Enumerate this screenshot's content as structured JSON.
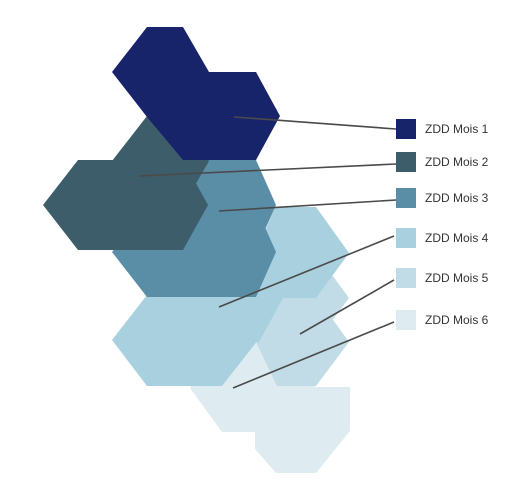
{
  "top_caption": "",
  "legend": [
    {
      "label": "ZDD Mois 1",
      "color": "#17246a"
    },
    {
      "label": "ZDD Mois 2",
      "color": "#3e5d6b"
    },
    {
      "label": "ZDD Mois 3",
      "color": "#5a8ea7"
    },
    {
      "label": "ZDD Mois 4",
      "color": "#a9d0de"
    },
    {
      "label": "ZDD Mois 5",
      "color": "#c2dce7"
    },
    {
      "label": "ZDD Mois 6",
      "color": "#deebf1"
    }
  ],
  "colors": {
    "connector_line": "#4a4a4a",
    "background": "#ffffff"
  }
}
